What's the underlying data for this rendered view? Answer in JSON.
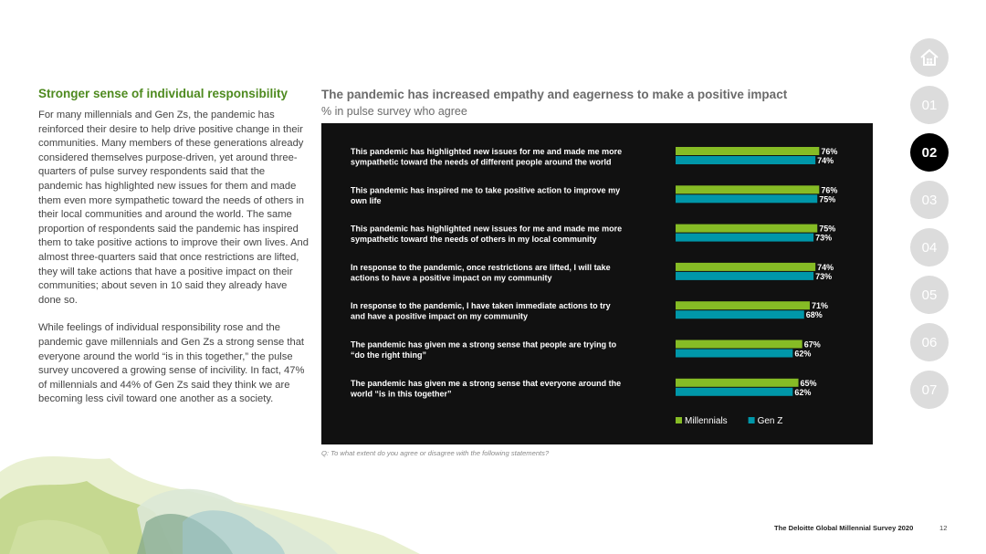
{
  "left": {
    "heading": "Stronger sense of individual responsibility",
    "paragraph1": "For many millennials and Gen Zs, the pandemic has reinforced their desire to help drive positive change in their communities. Many members of these generations already considered themselves purpose-driven, yet around three-quarters of pulse survey respondents said that the pandemic has highlighted new issues for them and made them even more sympathetic toward the needs of others in their local communities and around the world. The same proportion of respondents said the pandemic has inspired them to take positive actions to improve their own lives. And almost three-quarters said that once restrictions are lifted, they will take actions that have a positive impact on their communities; about seven in 10 said they already have done so.",
    "paragraph2": "While feelings of individual responsibility rose and the pandemic gave millennials and Gen Zs a strong sense that everyone around the world “is in this together,” the pulse survey uncovered a growing sense of incivility. In fact, 47% of millennials and 44% of Gen Zs said they think we are becoming less civil toward one another as a society."
  },
  "chart_header": {
    "title": "The pandemic has increased empathy and eagerness to make a positive impact",
    "subtitle": "% in pulse survey who agree"
  },
  "chart_data": {
    "type": "bar",
    "orientation": "horizontal",
    "categories": [
      [
        "This pandemic has highlighted new issues for me and made me more",
        "sympathetic toward the needs of different people around the world"
      ],
      [
        "This pandemic has inspired me to take positive action to improve my",
        "own life"
      ],
      [
        "This pandemic has highlighted new issues for me and made me more",
        "sympathetic toward the needs of others in my local community"
      ],
      [
        "In response to the pandemic, once restrictions are lifted, I will take",
        "actions to have a positive impact on my community"
      ],
      [
        "In response to the pandemic, I have taken immediate actions to try",
        "and have a positive impact on my community"
      ],
      [
        "The pandemic has given me a strong sense that people are trying to",
        "“do the right thing”"
      ],
      [
        "The pandemic has given me a strong sense that everyone around the",
        "world “is in this together”"
      ]
    ],
    "series": [
      {
        "name": "Millennials",
        "color": "#86bc25",
        "values": [
          76,
          76,
          75,
          74,
          71,
          67,
          65
        ]
      },
      {
        "name": "Gen Z",
        "color": "#0097a9",
        "values": [
          74,
          75,
          73,
          73,
          68,
          62,
          62
        ]
      }
    ],
    "value_suffix": "%",
    "legend_position": "bottom-right",
    "background": "#111111",
    "grid": false
  },
  "question": "Q: To what extent do you agree or disagree with the following statements?",
  "nav": {
    "home_icon": "home-icon",
    "items": [
      "01",
      "02",
      "03",
      "04",
      "05",
      "06",
      "07"
    ],
    "active": "02"
  },
  "footer": {
    "title": "The Deloitte Global Millennial Survey 2020",
    "page": "12"
  }
}
